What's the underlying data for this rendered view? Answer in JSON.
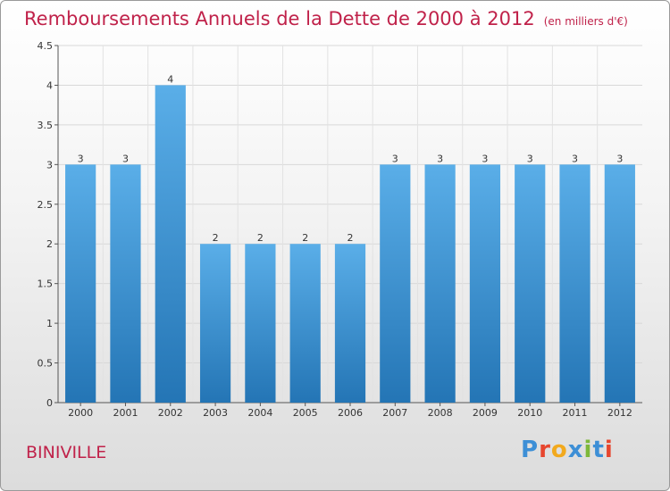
{
  "header": {
    "title": "Remboursements Annuels de la Dette de 2000 à 2012",
    "unit": "(en milliers d'€)"
  },
  "footer": {
    "commune": "BINIVILLE",
    "logo_text": "Proxiti",
    "logo_colors": [
      "#3d8fd6",
      "#e7462e",
      "#f2a91d",
      "#3d8fd6",
      "#7db83a",
      "#3d8fd6",
      "#e7462e"
    ]
  },
  "chart_data": {
    "type": "bar",
    "categories": [
      "2000",
      "2001",
      "2002",
      "2003",
      "2004",
      "2005",
      "2006",
      "2007",
      "2008",
      "2009",
      "2010",
      "2011",
      "2012"
    ],
    "values": [
      3,
      3,
      4,
      2,
      2,
      2,
      2,
      3,
      3,
      3,
      3,
      3,
      3
    ],
    "data_labels": [
      "3",
      "3",
      "4",
      "2",
      "2",
      "2",
      "2",
      "3",
      "3",
      "3",
      "3",
      "3",
      "3"
    ],
    "title": "Remboursements Annuels de la Dette de 2000 à 2012",
    "xlabel": "",
    "ylabel": "",
    "ylim": [
      0,
      4.5
    ],
    "yticks": [
      "0",
      "0.5",
      "1",
      "1.5",
      "2",
      "2.5",
      "3",
      "3.5",
      "4",
      "4.5"
    ],
    "grid": true,
    "bar_color_top": "#5aaee8",
    "bar_color_bottom": "#2475b5"
  }
}
